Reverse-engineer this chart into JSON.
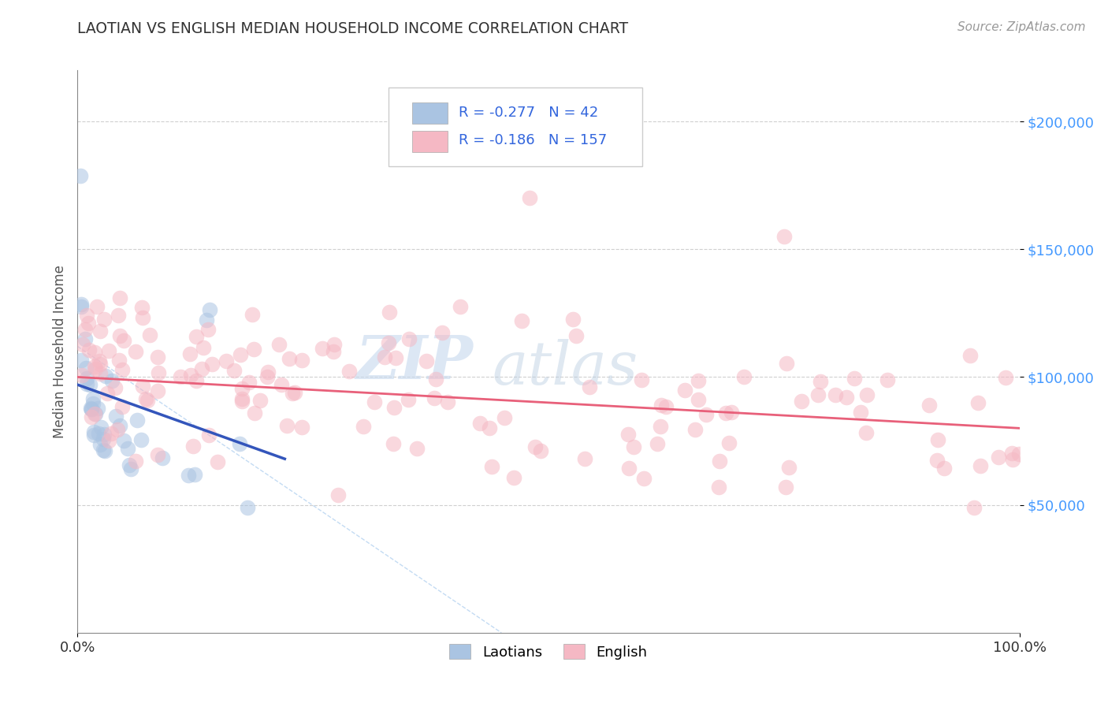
{
  "title": "LAOTIAN VS ENGLISH MEDIAN HOUSEHOLD INCOME CORRELATION CHART",
  "source": "Source: ZipAtlas.com",
  "ylabel": "Median Household Income",
  "xlim": [
    0,
    100
  ],
  "ylim": [
    0,
    220000
  ],
  "ytick_vals": [
    50000,
    100000,
    150000,
    200000
  ],
  "ytick_labels": [
    "$50,000",
    "$100,000",
    "$150,000",
    "$200,000"
  ],
  "xtick_labels": [
    "0.0%",
    "100.0%"
  ],
  "legend_label1": "Laotians",
  "legend_label2": "English",
  "r1": -0.277,
  "n1": 42,
  "r2": -0.186,
  "n2": 157,
  "blue_color": "#aac4e2",
  "pink_color": "#f5b8c4",
  "blue_line_color": "#3355bb",
  "pink_line_color": "#e8607a",
  "watermark_zip": "ZIP",
  "watermark_atlas": "atlas",
  "background_color": "#ffffff",
  "grid_color": "#d0d0d0",
  "title_color": "#333333",
  "source_color": "#999999",
  "ytick_color": "#4499ff",
  "xtick_color": "#333333",
  "ylabel_color": "#555555"
}
